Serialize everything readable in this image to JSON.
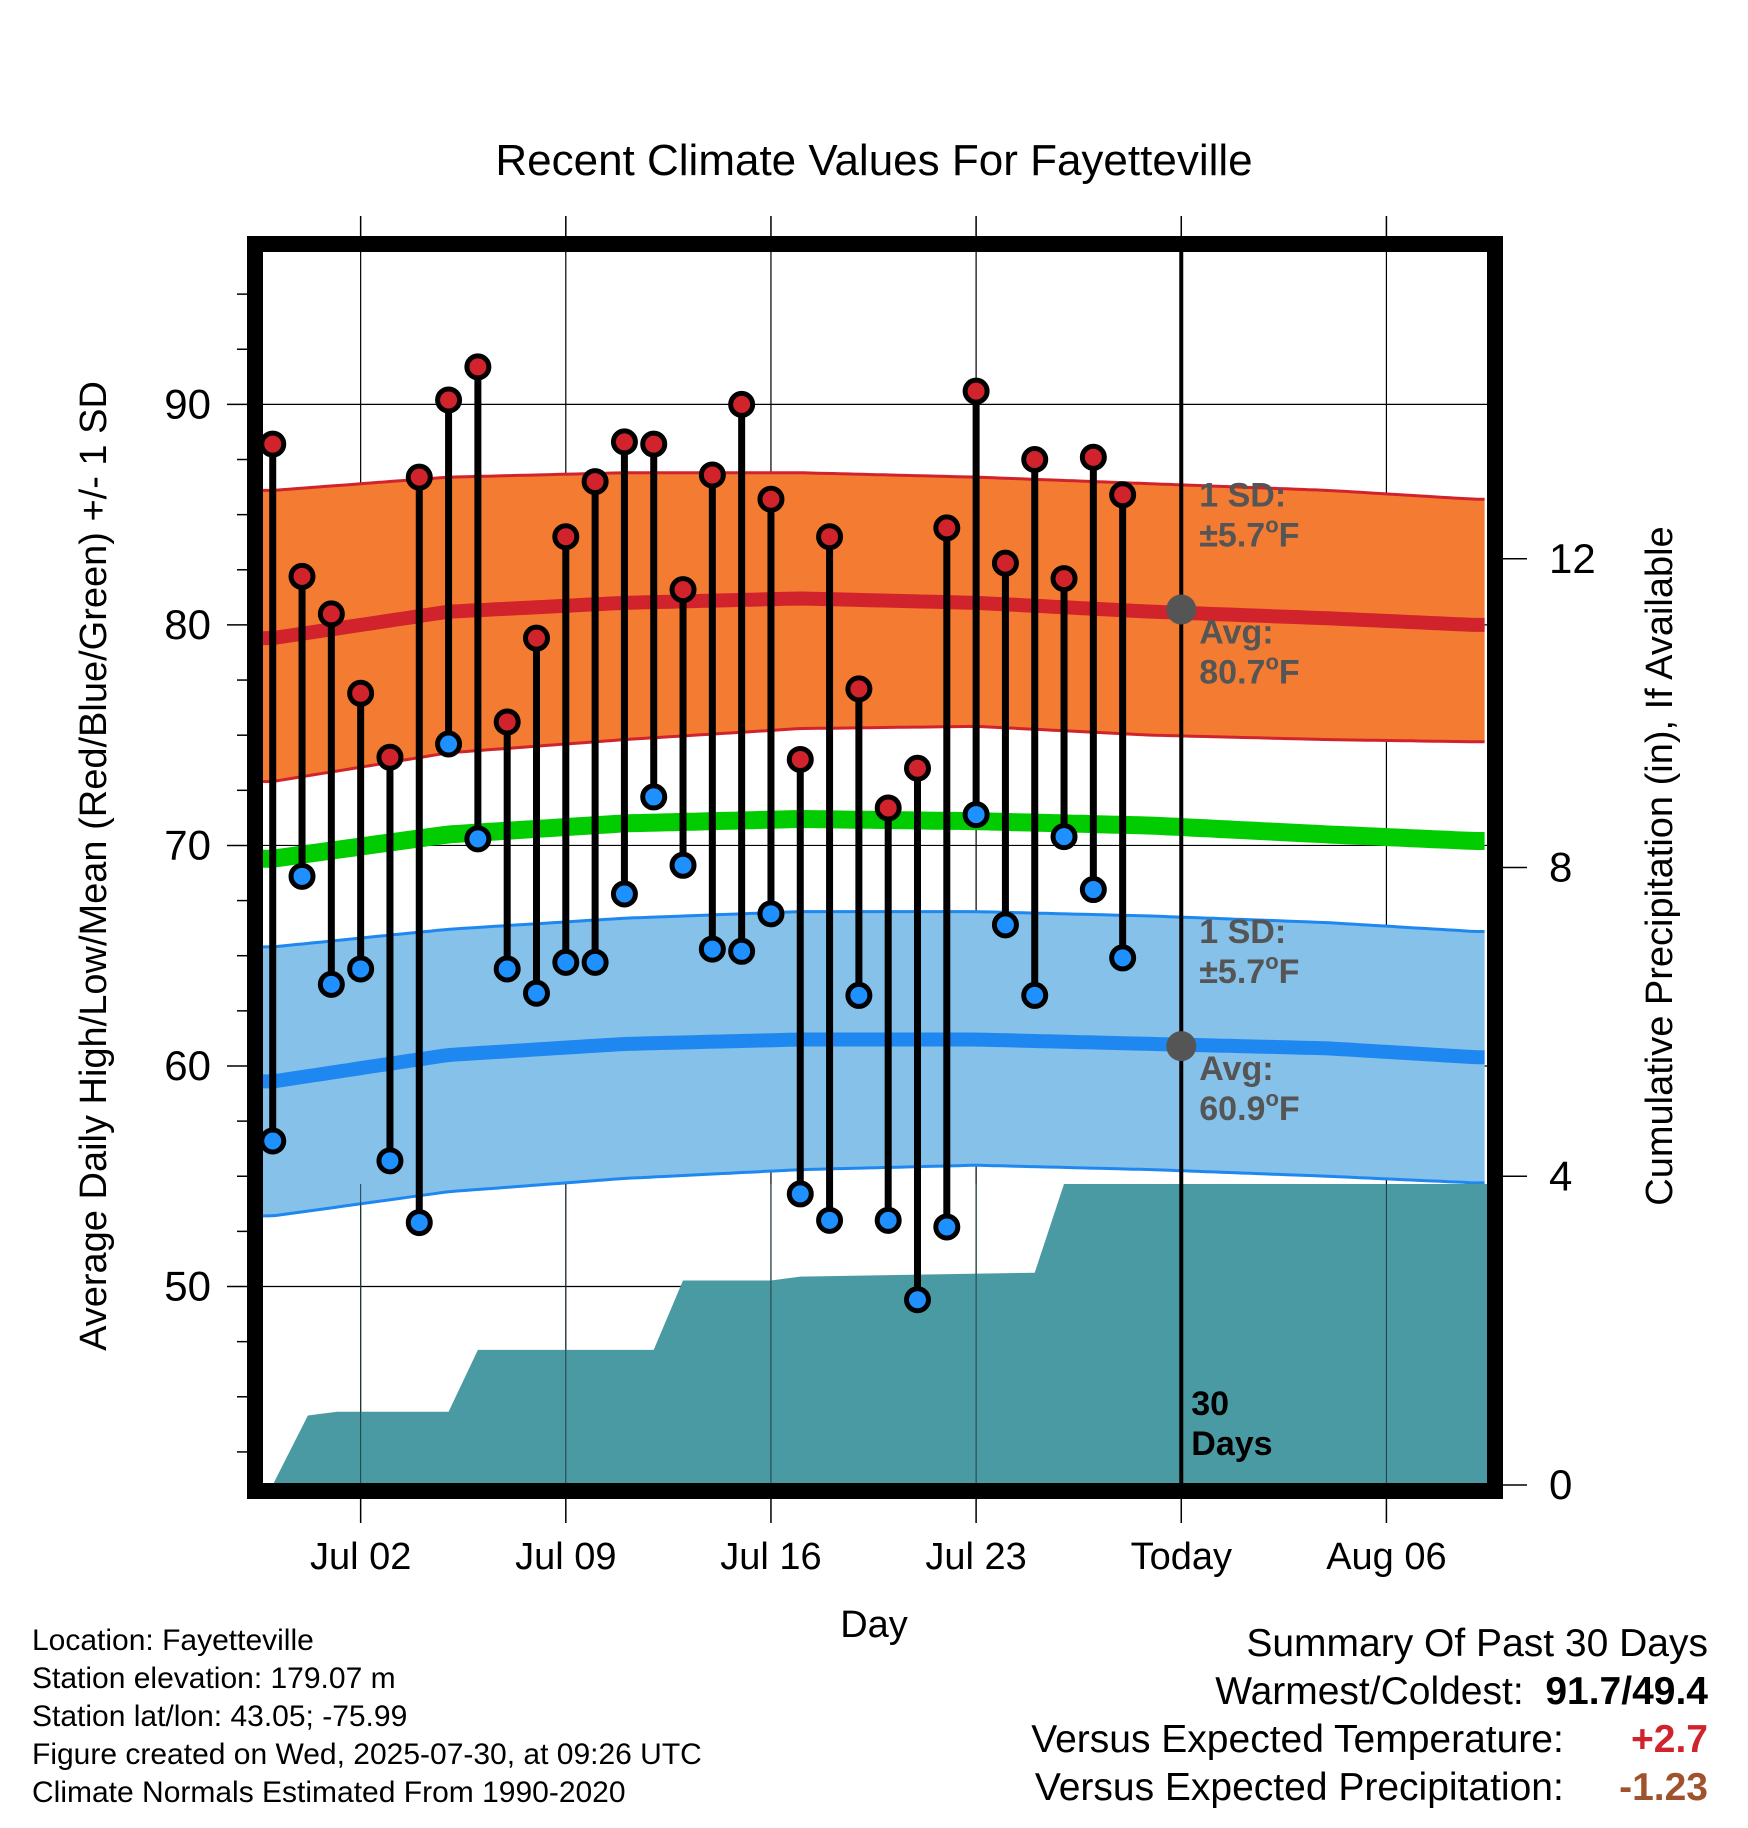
{
  "chart_data": {
    "type": "line",
    "title": "Recent Climate Values For Fayetteville",
    "xlabel": "Day",
    "ylabel": "Average Daily High/Low/Mean (Red/Blue/Green) +/- 1 SD",
    "y2label": "Cumulative Precipitation (in), If Available",
    "ylim": [
      41,
      97
    ],
    "y2lim": [
      0,
      16
    ],
    "yticks": [
      50,
      60,
      70,
      80,
      90
    ],
    "y2ticks": [
      0,
      4,
      8,
      12
    ],
    "xlim": [
      -1.4,
      40.5
    ],
    "xticks": [
      {
        "day": 2,
        "label": "Jul 02"
      },
      {
        "day": 9,
        "label": "Jul 09"
      },
      {
        "day": 16,
        "label": "Jul 16"
      },
      {
        "day": 23,
        "label": "Jul 23"
      },
      {
        "day": 30,
        "label": "Today"
      },
      {
        "day": 37,
        "label": "Aug 06"
      }
    ],
    "today_day": 30,
    "grid": true,
    "daily": {
      "days": [
        -1,
        0,
        1,
        2,
        3,
        4,
        5,
        6,
        7,
        8,
        9,
        10,
        11,
        12,
        13,
        14,
        15,
        16,
        17,
        18,
        19,
        20,
        21,
        22,
        23,
        24,
        25,
        26,
        27,
        28,
        29
      ],
      "highs": [
        88.2,
        82.2,
        80.5,
        76.9,
        74.0,
        86.7,
        90.2,
        91.7,
        75.6,
        79.4,
        84.0,
        86.5,
        88.3,
        88.2,
        81.6,
        86.8,
        90.0,
        85.7,
        73.9,
        84.0,
        77.1,
        71.7,
        73.5,
        84.4,
        90.6,
        82.8,
        87.5,
        82.1,
        87.6,
        85.9,
        null
      ],
      "lows": [
        56.6,
        68.6,
        63.7,
        64.4,
        55.7,
        52.9,
        74.6,
        70.3,
        64.4,
        63.3,
        64.7,
        64.7,
        67.8,
        72.2,
        69.1,
        65.3,
        65.2,
        66.9,
        54.2,
        53.0,
        63.2,
        53.0,
        49.4,
        52.7,
        71.4,
        66.4,
        63.2,
        70.4,
        68.0,
        64.9,
        null
      ]
    },
    "normals": {
      "days": [
        -1,
        5,
        11,
        17,
        23,
        29,
        35,
        40
      ],
      "high_avg": [
        79.4,
        80.6,
        81.0,
        81.2,
        81.0,
        80.6,
        80.3,
        80.0
      ],
      "low_avg": [
        59.3,
        60.5,
        61.0,
        61.2,
        61.2,
        61.0,
        60.8,
        60.4
      ],
      "mean_avg": [
        69.4,
        70.5,
        71.0,
        71.2,
        71.1,
        70.9,
        70.5,
        70.2
      ],
      "high_sd_upper": [
        86.1,
        86.7,
        86.9,
        86.9,
        86.7,
        86.4,
        86.1,
        85.7
      ],
      "high_sd_lower": [
        72.9,
        74.2,
        74.8,
        75.3,
        75.4,
        75.0,
        74.8,
        74.7
      ],
      "low_sd_upper": [
        65.4,
        66.2,
        66.7,
        67.0,
        67.0,
        66.8,
        66.5,
        66.1
      ],
      "low_sd_lower": [
        53.2,
        54.3,
        54.9,
        55.3,
        55.5,
        55.3,
        55.0,
        54.7
      ]
    },
    "precip": {
      "days": [
        -1.3,
        -1,
        0.2,
        1.2,
        5,
        6,
        12,
        13,
        16,
        17,
        25,
        26,
        40.5
      ],
      "cumulative": [
        0,
        0,
        0.9,
        0.95,
        0.95,
        1.75,
        1.75,
        2.65,
        2.65,
        2.7,
        2.75,
        3.9,
        3.9
      ],
      "label_line1": "30",
      "label_line2": "Days"
    },
    "annotations": {
      "high": {
        "sd_label": "1 SD:",
        "sd_value": "±5.7",
        "avg_label": "Avg:",
        "avg_value": "80.7",
        "avg": 80.7
      },
      "low": {
        "sd_label": "1 SD:",
        "sd_value": "±5.7",
        "avg_label": "Avg:",
        "avg_value": "60.9",
        "avg": 60.9
      },
      "unit_sup": "o",
      "unit": "F"
    },
    "colors": {
      "high_band": "#f47c32",
      "high_edge": "#d0232b",
      "low_band": "#85c1e8",
      "low_edge": "#1e88f0",
      "mean_line": "#00cc00",
      "precip": "#4a9aa3",
      "high_dot": "#d0232b",
      "low_dot": "#1e90ff",
      "annotation": "#555555"
    }
  },
  "info": {
    "location": "Location: Fayetteville",
    "elevation": "Station elevation: 179.07 m",
    "latlon": "Station lat/lon: 43.05; -75.99",
    "created": "Figure created on Wed, 2025-07-30, at 09:26 UTC",
    "normals": "Climate Normals Estimated From 1990-2020"
  },
  "summary": {
    "title": "Summary Of Past 30 Days",
    "warm_cold_label": "Warmest/Coldest:",
    "warm_cold_value": "91.7/49.4",
    "temp_label": "Versus Expected Temperature:",
    "temp_value": "+2.7",
    "temp_color": "#d0232b",
    "precip_label": "Versus Expected Precipitation:",
    "precip_value": "-1.23",
    "precip_color": "#a0522d"
  }
}
